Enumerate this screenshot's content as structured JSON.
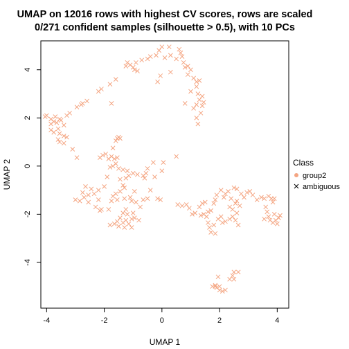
{
  "chart_data": {
    "type": "scatter",
    "title": "UMAP on 12016 rows with highest CV scores, rows are scaled",
    "subtitle": "0/271 confident samples (silhouette > 0.5), with 10 PCs",
    "xlabel": "UMAP 1",
    "ylabel": "UMAP 2",
    "xlim": [
      -4.2,
      4.4
    ],
    "ylim": [
      -5.9,
      5.2
    ],
    "xticks": [
      -4,
      -2,
      0,
      2,
      4
    ],
    "yticks": [
      -4,
      -2,
      0,
      2,
      4
    ],
    "xtick_labels": [
      "-4",
      "-2",
      "0",
      "2",
      "4"
    ],
    "ytick_labels": [
      "-4",
      "-2",
      "0",
      "2",
      "4"
    ],
    "grid": false,
    "legend_position": "right",
    "legend": {
      "title": "Class",
      "entries": [
        {
          "label": "group2",
          "marker": "dot",
          "color": "#F4A582"
        },
        {
          "label": "ambiguous",
          "marker": "cross",
          "color": "#000000"
        }
      ]
    },
    "series": [
      {
        "name": "ambiguous",
        "marker": "cross",
        "color": "#F4A582",
        "points": [
          [
            0.0,
            4.95
          ],
          [
            0.25,
            4.95
          ],
          [
            0.6,
            4.85
          ],
          [
            0.65,
            4.7
          ],
          [
            0.5,
            4.45
          ],
          [
            0.3,
            4.6
          ],
          [
            -0.1,
            4.8
          ],
          [
            -0.2,
            4.6
          ],
          [
            -0.4,
            4.55
          ],
          [
            -0.5,
            4.45
          ],
          [
            -0.7,
            4.4
          ],
          [
            0.1,
            4.5
          ],
          [
            0.7,
            4.55
          ],
          [
            0.75,
            4.3
          ],
          [
            0.9,
            4.15
          ],
          [
            0.8,
            4.1
          ],
          [
            1.0,
            4.0
          ],
          [
            0.9,
            3.8
          ],
          [
            1.1,
            3.65
          ],
          [
            1.2,
            3.5
          ],
          [
            1.3,
            3.55
          ],
          [
            1.2,
            3.3
          ],
          [
            1.0,
            3.1
          ],
          [
            1.25,
            3.0
          ],
          [
            1.4,
            2.9
          ],
          [
            1.3,
            2.75
          ],
          [
            1.45,
            2.65
          ],
          [
            1.2,
            2.55
          ],
          [
            0.8,
            2.6
          ],
          [
            1.1,
            2.4
          ],
          [
            1.35,
            2.2
          ],
          [
            1.2,
            2.0
          ],
          [
            1.25,
            1.75
          ],
          [
            1.4,
            2.5
          ],
          [
            -0.05,
            3.75
          ],
          [
            -0.15,
            3.5
          ],
          [
            0.3,
            3.9
          ],
          [
            -1.2,
            4.3
          ],
          [
            -1.25,
            4.15
          ],
          [
            -1.1,
            4.2
          ],
          [
            -1.0,
            4.1
          ],
          [
            -0.95,
            4.0
          ],
          [
            -0.85,
            3.95
          ],
          [
            -0.9,
            4.3
          ],
          [
            -1.6,
            3.6
          ],
          [
            -1.8,
            3.4
          ],
          [
            -2.1,
            3.2
          ],
          [
            -2.2,
            3.1
          ],
          [
            -1.75,
            2.6
          ],
          [
            -2.6,
            2.7
          ],
          [
            -2.75,
            2.6
          ],
          [
            -2.8,
            2.55
          ],
          [
            -2.95,
            2.45
          ],
          [
            -3.2,
            2.2
          ],
          [
            -3.3,
            2.1
          ],
          [
            -4.0,
            2.1
          ],
          [
            -4.05,
            2.05
          ],
          [
            -3.85,
            1.95
          ],
          [
            -3.7,
            2.05
          ],
          [
            -3.75,
            1.85
          ],
          [
            -3.65,
            1.8
          ],
          [
            -3.55,
            1.95
          ],
          [
            -3.5,
            1.9
          ],
          [
            -3.85,
            1.75
          ],
          [
            -3.6,
            1.55
          ],
          [
            -3.4,
            1.7
          ],
          [
            -3.75,
            1.4
          ],
          [
            -3.55,
            1.35
          ],
          [
            -3.4,
            1.25
          ],
          [
            -3.3,
            1.2
          ],
          [
            -3.6,
            1.1
          ],
          [
            -3.55,
            1.0
          ],
          [
            -3.4,
            0.95
          ],
          [
            -3.1,
            0.7
          ],
          [
            -3.85,
            1.5
          ],
          [
            -1.55,
            1.15
          ],
          [
            -1.5,
            1.2
          ],
          [
            -1.45,
            1.15
          ],
          [
            -1.6,
            1.05
          ],
          [
            -1.7,
            0.75
          ],
          [
            -2.95,
            0.35
          ],
          [
            -2.15,
            0.35
          ],
          [
            -2.05,
            0.45
          ],
          [
            -1.95,
            0.5
          ],
          [
            -1.85,
            0.3
          ],
          [
            -1.75,
            0.4
          ],
          [
            -1.65,
            0.3
          ],
          [
            -1.55,
            0.35
          ],
          [
            -1.6,
            0.1
          ],
          [
            -1.7,
            0.0
          ],
          [
            -1.8,
            -0.05
          ],
          [
            -1.5,
            -0.1
          ],
          [
            -1.35,
            -0.15
          ],
          [
            -1.2,
            -0.2
          ],
          [
            -1.15,
            -0.4
          ],
          [
            -1.25,
            -0.5
          ],
          [
            -1.0,
            -0.3
          ],
          [
            -0.85,
            -0.35
          ],
          [
            -0.65,
            -0.4
          ],
          [
            -0.55,
            -0.3
          ],
          [
            -0.6,
            -0.5
          ],
          [
            -0.25,
            -0.45
          ],
          [
            -1.9,
            -0.45
          ],
          [
            -1.45,
            -0.55
          ],
          [
            -1.35,
            -0.8
          ],
          [
            -1.3,
            -0.9
          ],
          [
            -1.45,
            -1.05
          ],
          [
            -1.6,
            -1.15
          ],
          [
            -1.7,
            -1.25
          ],
          [
            -2.0,
            -0.85
          ],
          [
            -2.2,
            -1.0
          ],
          [
            -2.35,
            -1.15
          ],
          [
            -2.55,
            -1.2
          ],
          [
            -2.7,
            -1.3
          ],
          [
            -2.75,
            -1.1
          ],
          [
            -2.65,
            -0.85
          ],
          [
            -2.45,
            -0.95
          ],
          [
            -2.2,
            -1.4
          ],
          [
            -2.55,
            -1.5
          ],
          [
            -2.85,
            -1.45
          ],
          [
            -3.0,
            -1.4
          ],
          [
            -2.3,
            -1.7
          ],
          [
            -2.1,
            -1.8
          ],
          [
            -1.85,
            -1.8
          ],
          [
            -2.15,
            -1.85
          ],
          [
            -1.75,
            -1.45
          ],
          [
            -1.55,
            -1.4
          ],
          [
            -1.3,
            -1.35
          ],
          [
            -1.1,
            -1.3
          ],
          [
            -1.05,
            -1.45
          ],
          [
            -0.9,
            -1.5
          ],
          [
            -0.65,
            -1.4
          ],
          [
            -0.5,
            -1.35
          ],
          [
            -0.75,
            -1.7
          ],
          [
            -1.25,
            -1.8
          ],
          [
            -1.35,
            -1.95
          ],
          [
            -1.45,
            -2.15
          ],
          [
            -1.55,
            -2.3
          ],
          [
            -1.35,
            -2.35
          ],
          [
            -1.25,
            -2.25
          ],
          [
            -1.05,
            -2.2
          ],
          [
            -0.95,
            -2.15
          ],
          [
            -0.8,
            -2.25
          ],
          [
            -1.2,
            -2.0
          ],
          [
            -1.0,
            -1.95
          ],
          [
            -1.65,
            -2.4
          ],
          [
            -1.8,
            -2.45
          ],
          [
            -1.5,
            -2.5
          ],
          [
            -1.3,
            -2.55
          ],
          [
            -1.15,
            -2.4
          ],
          [
            -1.05,
            -2.55
          ],
          [
            -0.15,
            -1.35
          ],
          [
            -0.05,
            -1.4
          ],
          [
            0.55,
            -1.6
          ],
          [
            0.7,
            -1.65
          ],
          [
            0.85,
            -1.6
          ],
          [
            0.95,
            -1.75
          ],
          [
            1.05,
            -2.0
          ],
          [
            1.15,
            -1.95
          ],
          [
            1.3,
            -1.7
          ],
          [
            1.4,
            -1.55
          ],
          [
            1.5,
            -1.5
          ],
          [
            1.35,
            -2.05
          ],
          [
            1.45,
            -2.0
          ],
          [
            1.6,
            -1.9
          ],
          [
            1.7,
            -1.85
          ],
          [
            1.8,
            -1.55
          ],
          [
            1.85,
            -1.4
          ],
          [
            1.9,
            -1.2
          ],
          [
            2.05,
            -1.0
          ],
          [
            2.15,
            -1.3
          ],
          [
            2.2,
            -1.15
          ],
          [
            2.3,
            -1.05
          ],
          [
            2.4,
            -1.35
          ],
          [
            2.5,
            -0.9
          ],
          [
            2.6,
            -0.95
          ],
          [
            2.75,
            -1.15
          ],
          [
            2.85,
            -1.3
          ],
          [
            2.95,
            -1.1
          ],
          [
            3.05,
            -1.05
          ],
          [
            3.15,
            -1.2
          ],
          [
            3.3,
            -1.4
          ],
          [
            3.45,
            -1.3
          ],
          [
            3.55,
            -1.35
          ],
          [
            3.7,
            -1.25
          ],
          [
            3.8,
            -1.35
          ],
          [
            3.85,
            -1.5
          ],
          [
            3.9,
            -1.35
          ],
          [
            1.55,
            -2.1
          ],
          [
            1.6,
            -2.35
          ],
          [
            1.65,
            -2.55
          ],
          [
            1.7,
            -2.75
          ],
          [
            1.8,
            -2.45
          ],
          [
            1.95,
            -2.2
          ],
          [
            2.05,
            -2.1
          ],
          [
            2.1,
            -2.35
          ],
          [
            2.2,
            -2.3
          ],
          [
            2.35,
            -2.2
          ],
          [
            2.45,
            -2.1
          ],
          [
            2.55,
            -2.25
          ],
          [
            2.65,
            -2.45
          ],
          [
            2.6,
            -1.95
          ],
          [
            2.45,
            -1.8
          ],
          [
            2.35,
            -1.7
          ],
          [
            2.55,
            -1.55
          ],
          [
            2.6,
            -1.45
          ],
          [
            2.7,
            -1.65
          ],
          [
            1.85,
            -2.8
          ],
          [
            3.6,
            -1.7
          ],
          [
            3.65,
            -1.9
          ],
          [
            3.7,
            -2.1
          ],
          [
            3.75,
            -2.25
          ],
          [
            3.85,
            -2.35
          ],
          [
            3.95,
            -2.25
          ],
          [
            4.05,
            -2.15
          ],
          [
            4.1,
            -2.05
          ],
          [
            4.0,
            -2.4
          ],
          [
            3.9,
            -2.0
          ],
          [
            3.55,
            -2.2
          ],
          [
            1.95,
            -4.6
          ],
          [
            1.85,
            -4.95
          ],
          [
            1.75,
            -5.0
          ],
          [
            1.85,
            -5.0
          ],
          [
            1.9,
            -5.05
          ],
          [
            2.0,
            -5.0
          ],
          [
            2.0,
            -5.15
          ],
          [
            2.1,
            -5.2
          ],
          [
            2.2,
            -5.15
          ],
          [
            2.35,
            -4.7
          ],
          [
            2.45,
            -4.55
          ],
          [
            2.5,
            -4.4
          ],
          [
            2.65,
            -4.4
          ],
          [
            2.5,
            -4.7
          ],
          [
            -0.4,
            -1.0
          ],
          [
            0.0,
            -0.2
          ],
          [
            -0.3,
            0.15
          ],
          [
            0.05,
            0.15
          ],
          [
            0.5,
            0.4
          ],
          [
            -0.5,
            -0.1
          ],
          [
            -0.95,
            -1.05
          ]
        ]
      }
    ]
  }
}
